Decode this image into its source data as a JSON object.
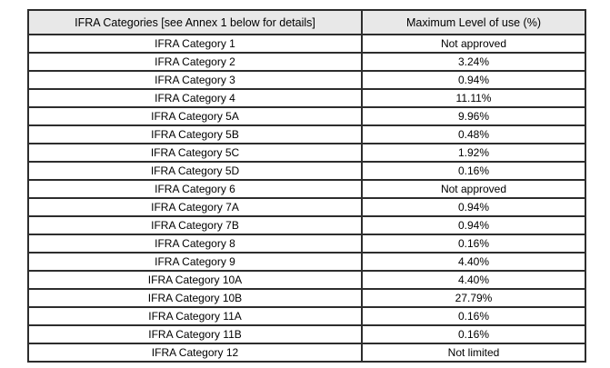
{
  "table": {
    "headers": {
      "categories": "IFRA Categories [see Annex 1 below for details]",
      "max_level": "Maximum Level of use (%)"
    },
    "rows": [
      {
        "category": "IFRA Category 1",
        "value": "Not approved"
      },
      {
        "category": "IFRA Category 2",
        "value": "3.24%"
      },
      {
        "category": "IFRA Category 3",
        "value": "0.94%"
      },
      {
        "category": "IFRA Category 4",
        "value": "11.11%"
      },
      {
        "category": "IFRA Category 5A",
        "value": "9.96%"
      },
      {
        "category": "IFRA Category 5B",
        "value": "0.48%"
      },
      {
        "category": "IFRA Category 5C",
        "value": "1.92%"
      },
      {
        "category": "IFRA Category 5D",
        "value": "0.16%"
      },
      {
        "category": "IFRA Category 6",
        "value": "Not approved"
      },
      {
        "category": "IFRA Category 7A",
        "value": "0.94%"
      },
      {
        "category": "IFRA Category 7B",
        "value": "0.94%"
      },
      {
        "category": "IFRA Category 8",
        "value": "0.16%"
      },
      {
        "category": "IFRA Category 9",
        "value": "4.40%"
      },
      {
        "category": "IFRA Category 10A",
        "value": "4.40%"
      },
      {
        "category": "IFRA Category 10B",
        "value": "27.79%"
      },
      {
        "category": "IFRA Category 11A",
        "value": "0.16%"
      },
      {
        "category": "IFRA Category 11B",
        "value": "0.16%"
      },
      {
        "category": "IFRA Category 12",
        "value": "Not limited"
      }
    ],
    "colors": {
      "header_bg": "#e8e8e8",
      "border": "#2d2d2d",
      "row_bg": "#ffffff",
      "text": "#000000"
    }
  },
  "chart_data": {
    "type": "table",
    "title": "",
    "columns": [
      "IFRA Categories [see Annex 1 below for details]",
      "Maximum Level of use (%)"
    ],
    "categories": [
      "IFRA Category 1",
      "IFRA Category 2",
      "IFRA Category 3",
      "IFRA Category 4",
      "IFRA Category 5A",
      "IFRA Category 5B",
      "IFRA Category 5C",
      "IFRA Category 5D",
      "IFRA Category 6",
      "IFRA Category 7A",
      "IFRA Category 7B",
      "IFRA Category 8",
      "IFRA Category 9",
      "IFRA Category 10A",
      "IFRA Category 10B",
      "IFRA Category 11A",
      "IFRA Category 11B",
      "IFRA Category 12"
    ],
    "values": [
      "Not approved",
      "3.24%",
      "0.94%",
      "11.11%",
      "9.96%",
      "0.48%",
      "1.92%",
      "0.16%",
      "Not approved",
      "0.94%",
      "0.94%",
      "0.16%",
      "4.40%",
      "4.40%",
      "27.79%",
      "0.16%",
      "0.16%",
      "Not limited"
    ]
  }
}
